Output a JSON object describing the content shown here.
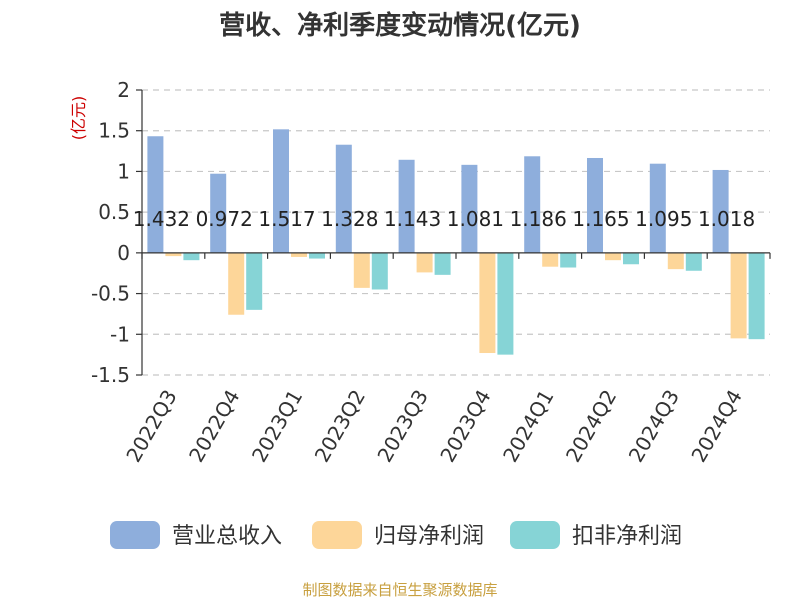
{
  "chart_data": {
    "type": "bar",
    "title": "营收、净利季度变动情况(亿元)",
    "unit_label": "(亿元)",
    "categories": [
      "2022Q3",
      "2022Q4",
      "2023Q1",
      "2023Q2",
      "2023Q3",
      "2023Q4",
      "2024Q1",
      "2024Q2",
      "2024Q3",
      "2024Q4"
    ],
    "series": [
      {
        "name": "营业总收入",
        "color": "#8eaedc",
        "values": [
          1.432,
          0.972,
          1.517,
          1.328,
          1.143,
          1.081,
          1.186,
          1.165,
          1.095,
          1.018
        ],
        "labels": [
          "1.432",
          "0.972",
          "1.517",
          "1.328",
          "1.143",
          "1.081",
          "1.186",
          "1.165",
          "1.095",
          "1.018"
        ]
      },
      {
        "name": "归母净利润",
        "color": "#fdd699",
        "values": [
          -0.04,
          -0.76,
          -0.05,
          -0.43,
          -0.24,
          -1.23,
          -0.17,
          -0.09,
          -0.2,
          -1.05
        ]
      },
      {
        "name": "扣非净利润",
        "color": "#86d4d6",
        "values": [
          -0.09,
          -0.7,
          -0.07,
          -0.45,
          -0.27,
          -1.25,
          -0.18,
          -0.14,
          -0.22,
          -1.06
        ]
      }
    ],
    "yticks": [
      "2",
      "1.5",
      "1",
      "0.5",
      "0",
      "-0.5",
      "-1",
      "-1.5"
    ],
    "ylim": [
      -1.5,
      2
    ],
    "grid": true,
    "legend_position": "bottom"
  },
  "source_text": "制图数据来自恒生聚源数据库"
}
